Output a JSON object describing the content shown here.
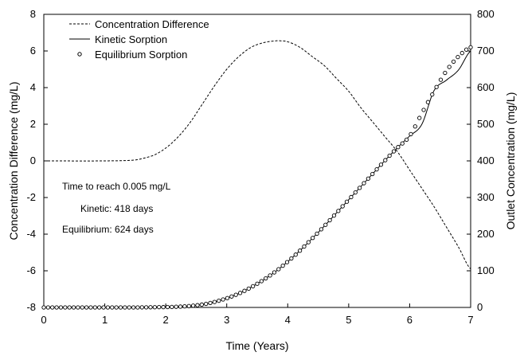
{
  "chart_data": {
    "type": "line",
    "title": "",
    "xlabel": "Time (Years)",
    "ylabel_left": "Concentration Difference (mg/L)",
    "ylabel_right": "Outlet Concentration (mg/L)",
    "xlim": [
      0,
      7
    ],
    "ylim_left": [
      -8,
      8
    ],
    "ylim_right": [
      0,
      800
    ],
    "x_ticks": [
      "0",
      "1",
      "2",
      "3",
      "4",
      "5",
      "6",
      "7"
    ],
    "y_left_ticks": [
      "-8",
      "-6",
      "-4",
      "-2",
      "0",
      "2",
      "4",
      "6",
      "8"
    ],
    "y_right_ticks": [
      "0",
      "100",
      "200",
      "300",
      "400",
      "500",
      "600",
      "700",
      "800"
    ],
    "grid": false,
    "legend_position": "top-left",
    "series": [
      {
        "name": "Concentration Difference",
        "axis": "left",
        "style": "dashed",
        "x": [
          0,
          1.0,
          1.5,
          1.8,
          2.0,
          2.2,
          2.4,
          2.6,
          2.8,
          3.0,
          3.2,
          3.4,
          3.6,
          3.8,
          3.9,
          4.0,
          4.2,
          4.4,
          4.6,
          4.8,
          5.0,
          5.2,
          5.4,
          5.6,
          5.8,
          6.0,
          6.2,
          6.4,
          6.6,
          6.8,
          7.0
        ],
        "values": [
          0,
          0,
          0.05,
          0.3,
          0.7,
          1.3,
          2.1,
          3.1,
          4.1,
          5.0,
          5.7,
          6.2,
          6.45,
          6.55,
          6.55,
          6.5,
          6.2,
          5.7,
          5.2,
          4.5,
          3.8,
          2.9,
          2.1,
          1.3,
          0.5,
          -0.5,
          -1.5,
          -2.5,
          -3.6,
          -4.7,
          -5.9
        ]
      },
      {
        "name": "Kinetic Sorption",
        "axis": "right",
        "style": "solid",
        "x": [
          0,
          1.5,
          2.0,
          2.2,
          2.4,
          2.6,
          2.8,
          3.0,
          3.2,
          3.4,
          3.6,
          3.8,
          4.0,
          4.2,
          4.4,
          4.6,
          4.8,
          5.0,
          5.2,
          5.4,
          5.6,
          5.8,
          6.0,
          6.2,
          6.4,
          6.6,
          6.8,
          7.0
        ],
        "values": [
          0,
          0,
          1,
          2,
          4,
          8,
          15,
          25,
          38,
          55,
          75,
          98,
          125,
          155,
          188,
          222,
          258,
          294,
          330,
          366,
          402,
          436,
          468,
          500,
          592,
          620,
          648,
          700
        ]
      },
      {
        "name": "Equilibrium Sorption",
        "axis": "right",
        "style": "markers",
        "x": [
          0,
          1.0,
          1.5,
          2.0,
          2.2,
          2.4,
          2.6,
          2.8,
          3.0,
          3.2,
          3.4,
          3.6,
          3.8,
          4.0,
          4.2,
          4.4,
          4.6,
          4.8,
          5.0,
          5.2,
          5.4,
          5.6,
          5.8,
          6.0,
          6.2,
          6.4,
          6.6,
          6.8,
          7.0
        ],
        "values": [
          0,
          0,
          0,
          1,
          2,
          4,
          8,
          15,
          25,
          38,
          55,
          75,
          98,
          125,
          155,
          188,
          222,
          258,
          294,
          330,
          366,
          402,
          436,
          468,
          530,
          590,
          645,
          685,
          710
        ]
      }
    ],
    "annotations": {
      "heading": "Time to reach 0.005 mg/L",
      "kinetic": "Kinetic:  418  days",
      "equilibrium": "Equilibrium:  624  days"
    }
  }
}
